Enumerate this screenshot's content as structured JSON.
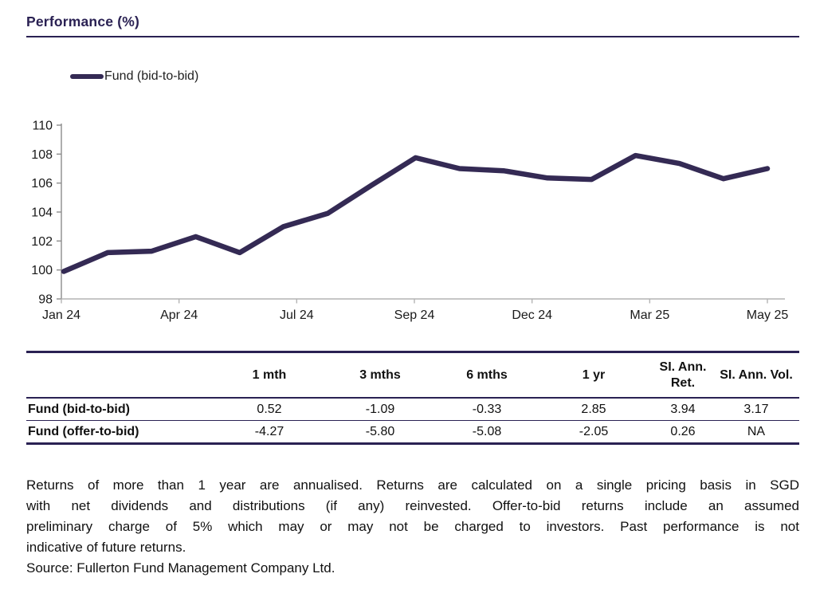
{
  "header": {
    "title": "Performance (%)"
  },
  "chart": {
    "legend_label": "Fund (bid-to-bid)"
  },
  "chart_data": {
    "type": "line",
    "title": "Performance (%)",
    "categories": [
      "Jan 24",
      "Feb 24",
      "Mar 24",
      "Apr 24",
      "May 24",
      "Jun 24",
      "Jul 24",
      "Aug 24",
      "Sep 24",
      "Oct 24",
      "Nov 24",
      "Dec 24",
      "Jan 25",
      "Feb 25",
      "Mar 25",
      "Apr 25",
      "May 25"
    ],
    "series": [
      {
        "name": "Fund (bid-to-bid)",
        "values": [
          99.9,
          101.2,
          101.3,
          102.3,
          101.2,
          103.0,
          103.9,
          105.85,
          107.75,
          107.0,
          106.85,
          106.35,
          106.25,
          107.9,
          107.35,
          106.3,
          107.0
        ]
      }
    ],
    "xtick_labels": [
      "Jan 24",
      "Apr 24",
      "Jul 24",
      "Sep 24",
      "Dec 24",
      "Mar 25",
      "May 25"
    ],
    "yticks": [
      98,
      100,
      102,
      104,
      106,
      108,
      110
    ],
    "ylim": [
      98,
      110
    ],
    "xlabel": "",
    "ylabel": "",
    "grid": false,
    "legend_position": "top-left"
  },
  "table": {
    "corner": "",
    "headers": [
      "1 mth",
      "3 mths",
      "6 mths",
      "1 yr",
      "SI. Ann. Ret.",
      "SI. Ann. Vol."
    ],
    "rows": [
      {
        "label": "Fund (bid-to-bid)",
        "values": [
          "0.52",
          "-1.09",
          "-0.33",
          "2.85",
          "3.94",
          "3.17"
        ]
      },
      {
        "label": "Fund (offer-to-bid)",
        "values": [
          "-4.27",
          "-5.80",
          "-5.08",
          "-2.05",
          "0.26",
          "NA"
        ]
      }
    ]
  },
  "footer": {
    "disclaimer_lines": [
      "Returns of more than 1 year are annualised. Returns are calculated on a single pricing basis in SGD",
      "with net dividends and distributions (if any) reinvested. Offer-to-bid returns include an assumed",
      "preliminary charge of 5% which may or may not be charged to investors. Past performance is not",
      "indicative of future returns."
    ],
    "source": "Source: Fullerton Fund Management Company Ltd."
  },
  "colors": {
    "accent": "#2a2153",
    "line": "#342a54",
    "axis_y": "#8c8c8c",
    "axis_x": "#b3b3b3",
    "text": "#1a1a1a"
  }
}
